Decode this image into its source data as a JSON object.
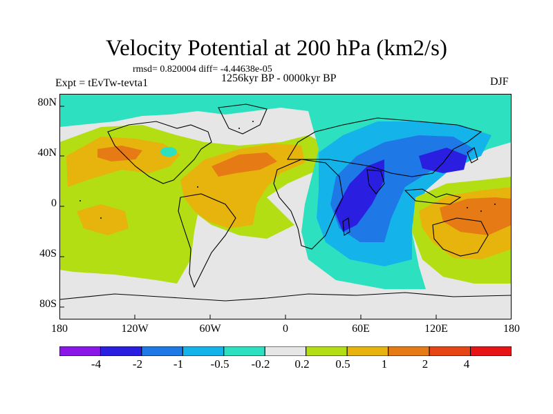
{
  "title": "Velocity Potential at 200 hPa (km2/s)",
  "stats": "rmsd= 0.820004 diff= -4.44638e-05",
  "period": "1256kyr BP - 0000kyr BP",
  "experiment": "Expt = tEvTw-tevta1",
  "season": "DJF",
  "y_axis": {
    "labels": [
      "80N",
      "40N",
      "0",
      "40S",
      "80S"
    ],
    "values": [
      80,
      40,
      0,
      -40,
      -80
    ],
    "range": [
      -90,
      90
    ]
  },
  "x_axis": {
    "labels": [
      "180",
      "120W",
      "60W",
      "0",
      "60E",
      "120E",
      "180"
    ],
    "values": [
      -180,
      -120,
      -60,
      0,
      60,
      120,
      180
    ],
    "range": [
      -180,
      180
    ]
  },
  "colorbar": {
    "colors": [
      "#8a16e8",
      "#2a1ee0",
      "#1e78e6",
      "#14b4ea",
      "#2ce0c0",
      "#e6e6e6",
      "#b4de14",
      "#e6b40c",
      "#e67a14",
      "#e64614",
      "#e61414"
    ],
    "labels": [
      "-4",
      "-2",
      "-1",
      "-0.5",
      "-0.2",
      "0.2",
      "0.5",
      "1",
      "2",
      "4"
    ]
  },
  "regions": [
    {
      "name": "arctic-teal",
      "level": -0.5
    },
    {
      "name": "indian-ocean-negative",
      "level": -1
    },
    {
      "name": "east-africa-core",
      "level": -2
    },
    {
      "name": "east-asia-core",
      "level": -2
    },
    {
      "name": "pacific-atlantic-positive",
      "level": 0.5
    },
    {
      "name": "australia-positive",
      "level": 1
    }
  ]
}
